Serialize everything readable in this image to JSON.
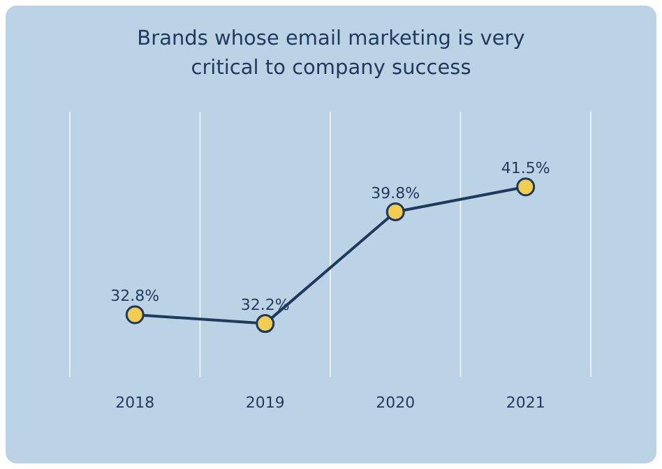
{
  "chart_data": {
    "type": "line",
    "title": "Brands whose email marketing is very critical to company success",
    "categories": [
      "2018",
      "2019",
      "2020",
      "2021"
    ],
    "values": [
      32.8,
      32.2,
      39.8,
      41.5
    ],
    "value_labels": [
      "32.8%",
      "32.2%",
      "39.8%",
      "41.5%"
    ],
    "color": "#1e3a5c",
    "marker": "circle",
    "grid": "x"
  }
}
